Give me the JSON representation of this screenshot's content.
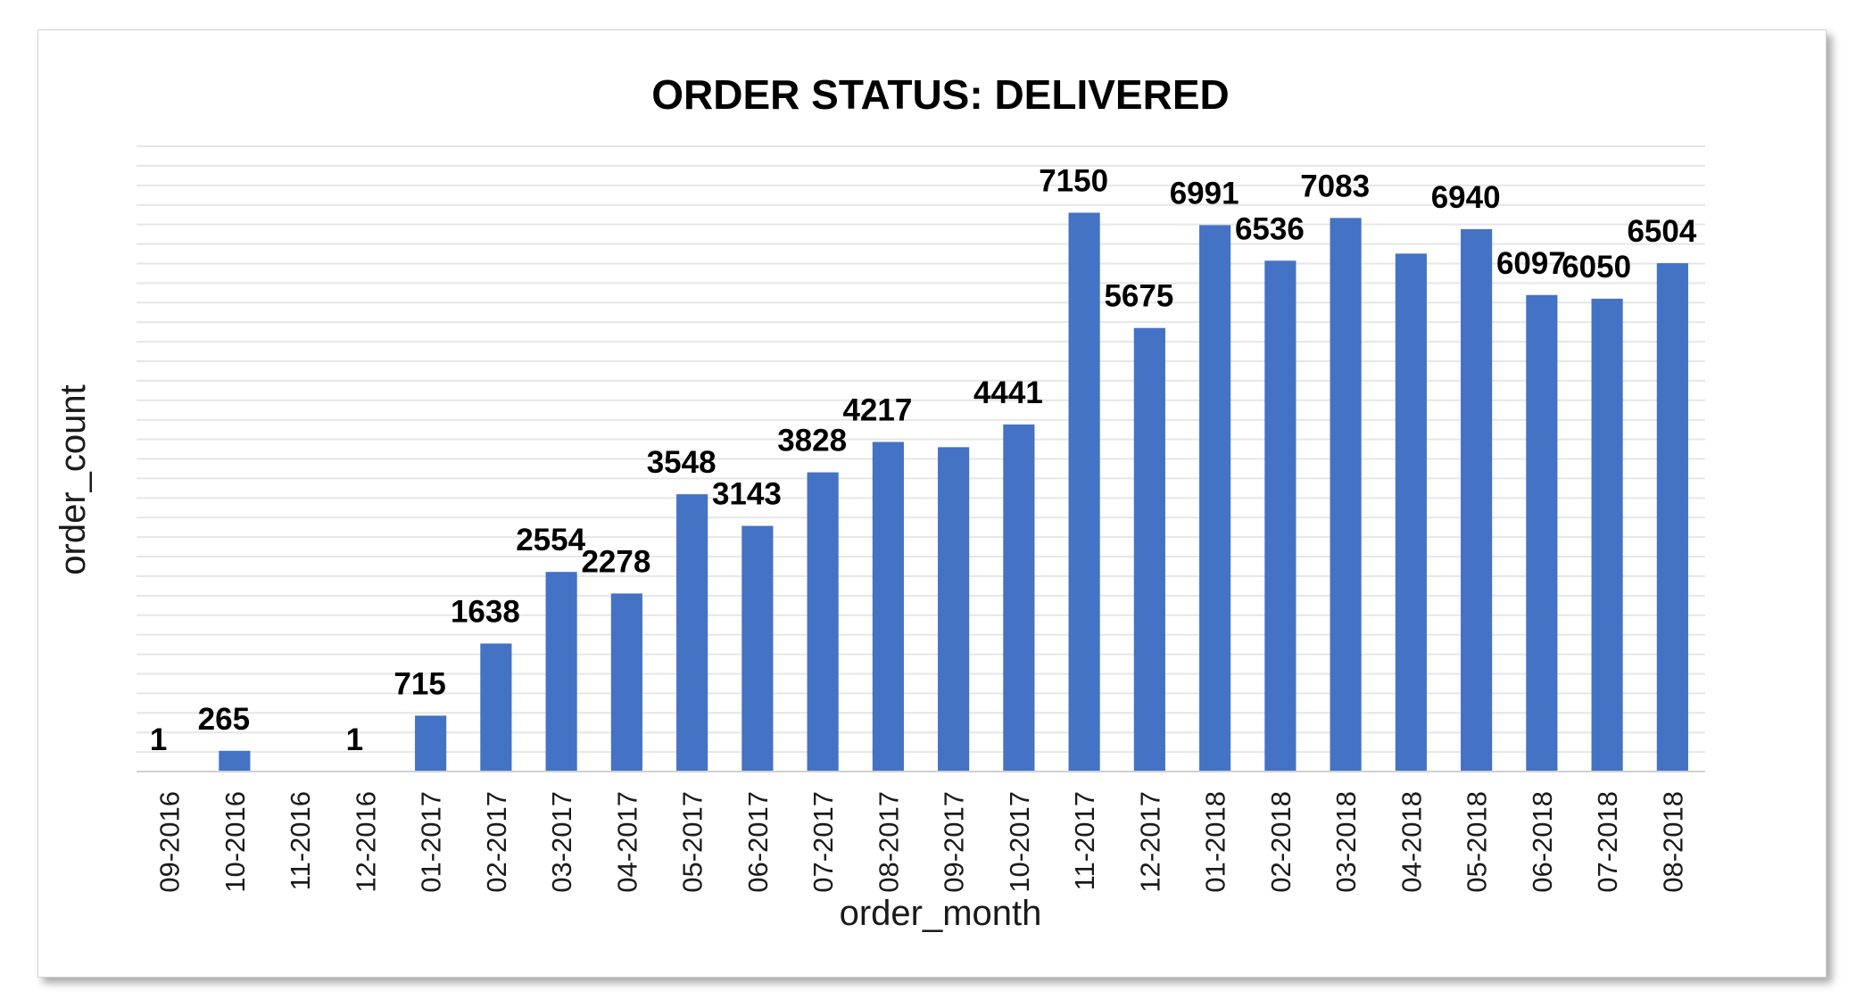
{
  "chart_data": {
    "type": "bar",
    "title": "ORDER STATUS: DELIVERED",
    "xlabel": "order_month",
    "ylabel": "order_count",
    "categories": [
      "09-2016",
      "10-2016",
      "11-2016",
      "12-2016",
      "01-2017",
      "02-2017",
      "03-2017",
      "04-2017",
      "05-2017",
      "06-2017",
      "07-2017",
      "08-2017",
      "09-2017",
      "10-2017",
      "11-2017",
      "12-2017",
      "01-2018",
      "02-2018",
      "03-2018",
      "04-2018",
      "05-2018",
      "06-2018",
      "07-2018",
      "08-2018"
    ],
    "values": [
      1,
      265,
      null,
      1,
      715,
      1638,
      2554,
      2278,
      3548,
      3143,
      3828,
      4217,
      4150,
      4441,
      7150,
      5675,
      6991,
      6536,
      7083,
      6627,
      6940,
      6097,
      6050,
      6504
    ],
    "data_labels": [
      "1",
      "265",
      "",
      "1",
      "715",
      "1638",
      "2554",
      "2278",
      "3548",
      "3143",
      "3828",
      "4217",
      "",
      "4441",
      "7150",
      "5675",
      "6991",
      "6536",
      "7083",
      "",
      "6940",
      "6097",
      "6050",
      "6504"
    ],
    "ylim": [
      0,
      8000
    ],
    "grid": true,
    "bar_color": "#4472c4",
    "grid_color": "#e6e6e6",
    "axis_color": "#d0d0d0"
  }
}
